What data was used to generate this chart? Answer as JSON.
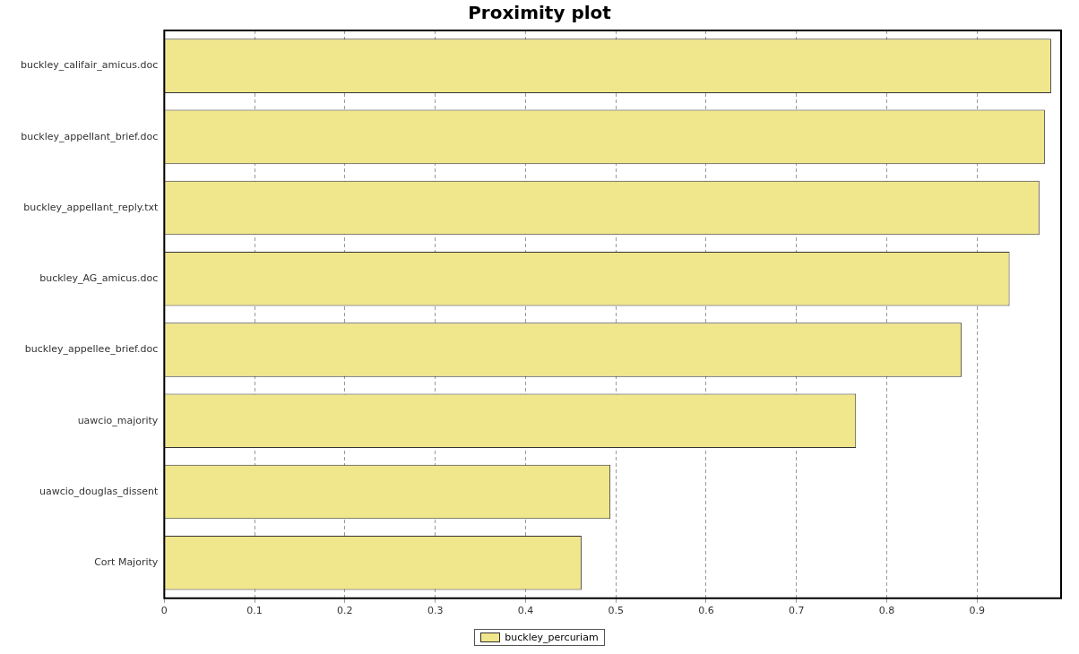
{
  "chart_data": {
    "type": "bar",
    "orientation": "horizontal",
    "title": "Proximity plot",
    "categories": [
      "buckley_califair_amicus.doc",
      "buckley_appellant_brief.doc",
      "buckley_appellant_reply.txt",
      "buckley_AG_amicus.doc",
      "buckley_appellee_brief.doc",
      "uawcio_majority",
      "uawcio_douglas_dissent",
      "Cort Majority"
    ],
    "series": [
      {
        "name": "buckley_percuriam",
        "color": "#f0e68c",
        "values": [
          0.982,
          0.975,
          0.969,
          0.936,
          0.883,
          0.766,
          0.494,
          0.462
        ]
      }
    ],
    "xlim": [
      0,
      0.993
    ],
    "xticks": [
      0,
      0.1,
      0.2,
      0.3,
      0.4,
      0.5,
      0.6,
      0.7,
      0.8,
      0.9
    ],
    "grid": "x",
    "legend": "bottom"
  }
}
